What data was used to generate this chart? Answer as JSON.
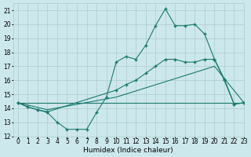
{
  "line1_x": [
    0,
    1,
    2,
    3,
    4,
    5,
    6,
    7,
    8,
    9,
    10,
    11,
    12,
    13,
    14,
    15,
    16,
    17,
    18,
    19,
    20,
    21,
    22,
    23
  ],
  "line1_y": [
    14.4,
    14.1,
    13.9,
    13.7,
    13.0,
    12.5,
    12.5,
    12.5,
    13.7,
    14.8,
    17.3,
    17.7,
    17.5,
    18.5,
    19.9,
    21.1,
    19.9,
    19.9,
    20.0,
    19.3,
    17.5,
    16.1,
    14.3,
    14.4
  ],
  "line2_x": [
    0,
    1,
    2,
    3,
    10,
    11,
    12,
    13,
    14,
    15,
    16,
    17,
    18,
    19,
    20,
    21,
    22,
    23
  ],
  "line2_y": [
    14.4,
    14.1,
    13.9,
    13.75,
    15.3,
    15.7,
    16.0,
    16.5,
    17.0,
    17.5,
    17.5,
    17.3,
    17.3,
    17.5,
    17.5,
    16.0,
    14.3,
    14.4
  ],
  "line3_x": [
    0,
    23
  ],
  "line3_y": [
    14.4,
    14.4
  ],
  "line4_x": [
    0,
    3,
    10,
    20,
    23
  ],
  "line4_y": [
    14.4,
    13.9,
    14.8,
    17.0,
    14.4
  ],
  "line_color": "#1a7a6e",
  "bg_color": "#cde8ec",
  "grid_color": "#aacccc",
  "xlabel": "Humidex (Indice chaleur)",
  "ylim": [
    12,
    21.5
  ],
  "xlim": [
    -0.5,
    23
  ],
  "yticks": [
    12,
    13,
    14,
    15,
    16,
    17,
    18,
    19,
    20,
    21
  ],
  "xticks": [
    0,
    1,
    2,
    3,
    4,
    5,
    6,
    7,
    8,
    9,
    10,
    11,
    12,
    13,
    14,
    15,
    16,
    17,
    18,
    19,
    20,
    21,
    22,
    23
  ],
  "xlabel_fontsize": 6.5,
  "tick_fontsize": 5.5,
  "marker": "+"
}
